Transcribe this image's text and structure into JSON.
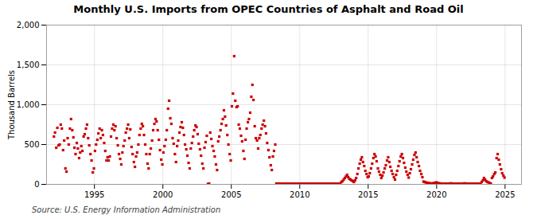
{
  "chart_data": {
    "type": "scatter",
    "title": "Monthly U.S. Imports from OPEC Countries of Asphalt and Road Oil",
    "ylabel": "Thousand Barrels",
    "source": "Source: U.S. Energy Information Administration",
    "xlim": [
      1991.5,
      2026.2
    ],
    "xticks": [
      1995,
      2000,
      2005,
      2010,
      2015,
      2020,
      2025
    ],
    "ylim": [
      0,
      2000
    ],
    "yticks": [
      0,
      500,
      {
        "value": 1000,
        "label": "1,000"
      },
      {
        "value": 1500,
        "label": "1,500"
      },
      {
        "value": 2000,
        "label": "2,000"
      }
    ],
    "grid": true,
    "color": "#cc0000",
    "marker": "square",
    "x": [
      1992.04,
      1992.12,
      1992.21,
      1992.29,
      1992.38,
      1992.46,
      1992.54,
      1992.62,
      1992.71,
      1992.79,
      1992.88,
      1992.96,
      1993.04,
      1993.12,
      1993.21,
      1993.29,
      1993.38,
      1993.46,
      1993.54,
      1993.62,
      1993.71,
      1993.79,
      1993.88,
      1993.96,
      1994.04,
      1994.12,
      1994.21,
      1994.29,
      1994.38,
      1994.46,
      1994.54,
      1994.62,
      1994.71,
      1994.79,
      1994.88,
      1994.96,
      1995.04,
      1995.12,
      1995.21,
      1995.29,
      1995.38,
      1995.46,
      1995.54,
      1995.62,
      1995.71,
      1995.79,
      1995.88,
      1995.96,
      1996.04,
      1996.12,
      1996.21,
      1996.29,
      1996.38,
      1996.46,
      1996.54,
      1996.62,
      1996.71,
      1996.79,
      1996.88,
      1996.96,
      1997.04,
      1997.12,
      1997.21,
      1997.29,
      1997.38,
      1997.46,
      1997.54,
      1997.62,
      1997.71,
      1997.79,
      1997.88,
      1997.96,
      1998.04,
      1998.12,
      1998.21,
      1998.29,
      1998.38,
      1998.46,
      1998.54,
      1998.62,
      1998.71,
      1998.79,
      1998.88,
      1998.96,
      1999.04,
      1999.12,
      1999.21,
      1999.29,
      1999.38,
      1999.46,
      1999.54,
      1999.62,
      1999.71,
      1999.79,
      1999.88,
      1999.96,
      2000.04,
      2000.12,
      2000.21,
      2000.29,
      2000.38,
      2000.46,
      2000.54,
      2000.62,
      2000.71,
      2000.79,
      2000.88,
      2000.96,
      2001.04,
      2001.12,
      2001.21,
      2001.29,
      2001.38,
      2001.46,
      2001.54,
      2001.62,
      2001.71,
      2001.79,
      2001.88,
      2001.96,
      2002.04,
      2002.12,
      2002.21,
      2002.29,
      2002.38,
      2002.46,
      2002.54,
      2002.62,
      2002.71,
      2002.79,
      2002.88,
      2002.96,
      2003.04,
      2003.12,
      2003.21,
      2003.29,
      2003.38,
      2003.46,
      2003.54,
      2003.62,
      2003.71,
      2003.79,
      2003.88,
      2003.96,
      2004.04,
      2004.12,
      2004.21,
      2004.29,
      2004.38,
      2004.46,
      2004.54,
      2004.62,
      2004.71,
      2004.79,
      2004.88,
      2004.96,
      2005.04,
      2005.12,
      2005.21,
      2005.29,
      2005.38,
      2005.46,
      2005.54,
      2005.62,
      2005.71,
      2005.79,
      2005.88,
      2005.96,
      2006.04,
      2006.12,
      2006.21,
      2006.29,
      2006.38,
      2006.46,
      2006.54,
      2006.62,
      2006.71,
      2006.79,
      2006.88,
      2006.96,
      2007.04,
      2007.12,
      2007.21,
      2007.29,
      2007.38,
      2007.46,
      2007.54,
      2007.62,
      2007.71,
      2007.79,
      2007.88,
      2007.96,
      2008.04,
      2008.12,
      2008.21,
      2008.29,
      2008.38,
      2008.46,
      2008.54,
      2008.62,
      2008.71,
      2008.79,
      2008.88,
      2008.96,
      2009.04,
      2009.12,
      2009.21,
      2009.29,
      2009.38,
      2009.46,
      2009.54,
      2009.62,
      2009.71,
      2009.79,
      2009.88,
      2009.96,
      2010.04,
      2010.12,
      2010.21,
      2010.29,
      2010.38,
      2010.46,
      2010.54,
      2010.62,
      2010.71,
      2010.79,
      2010.88,
      2010.96,
      2011.04,
      2011.12,
      2011.21,
      2011.29,
      2011.38,
      2011.46,
      2011.54,
      2011.62,
      2011.71,
      2011.79,
      2011.88,
      2011.96,
      2012.04,
      2012.12,
      2012.21,
      2012.29,
      2012.38,
      2012.46,
      2012.54,
      2012.62,
      2012.71,
      2012.79,
      2012.88,
      2012.96,
      2013.04,
      2013.12,
      2013.21,
      2013.29,
      2013.38,
      2013.46,
      2013.54,
      2013.62,
      2013.71,
      2013.79,
      2013.88,
      2013.96,
      2014.04,
      2014.12,
      2014.21,
      2014.29,
      2014.38,
      2014.46,
      2014.54,
      2014.62,
      2014.71,
      2014.79,
      2014.88,
      2014.96,
      2015.04,
      2015.12,
      2015.21,
      2015.29,
      2015.38,
      2015.46,
      2015.54,
      2015.62,
      2015.71,
      2015.79,
      2015.88,
      2015.96,
      2016.04,
      2016.12,
      2016.21,
      2016.29,
      2016.38,
      2016.46,
      2016.54,
      2016.62,
      2016.71,
      2016.79,
      2016.88,
      2016.96,
      2017.04,
      2017.12,
      2017.21,
      2017.29,
      2017.38,
      2017.46,
      2017.54,
      2017.62,
      2017.71,
      2017.79,
      2017.88,
      2017.96,
      2018.04,
      2018.12,
      2018.21,
      2018.29,
      2018.38,
      2018.46,
      2018.54,
      2018.62,
      2018.71,
      2018.79,
      2018.88,
      2018.96,
      2019.04,
      2019.12,
      2019.21,
      2019.29,
      2019.38,
      2019.46,
      2019.54,
      2019.62,
      2019.71,
      2019.79,
      2019.88,
      2019.96,
      2020.04,
      2020.12,
      2020.21,
      2020.29,
      2020.38,
      2020.46,
      2020.54,
      2020.62,
      2020.71,
      2020.79,
      2020.88,
      2020.96,
      2021.04,
      2021.12,
      2021.21,
      2021.29,
      2021.38,
      2021.46,
      2021.54,
      2021.62,
      2021.71,
      2021.79,
      2021.88,
      2021.96,
      2022.04,
      2022.12,
      2022.21,
      2022.29,
      2022.38,
      2022.46,
      2022.54,
      2022.62,
      2022.71,
      2022.79,
      2022.88,
      2022.96,
      2023.04,
      2023.12,
      2023.21,
      2023.29,
      2023.38,
      2023.46,
      2023.54,
      2023.62,
      2023.71,
      2023.79,
      2023.88,
      2023.96,
      2024.04,
      2024.12,
      2024.21,
      2024.29,
      2024.38,
      2024.46,
      2024.54,
      2024.62,
      2024.71,
      2024.79,
      2024.88,
      2024.96
    ],
    "values": [
      600,
      650,
      460,
      710,
      490,
      500,
      750,
      700,
      430,
      550,
      200,
      160,
      580,
      500,
      700,
      820,
      680,
      590,
      460,
      380,
      520,
      450,
      330,
      400,
      480,
      420,
      600,
      630,
      700,
      750,
      580,
      490,
      380,
      300,
      150,
      200,
      420,
      500,
      560,
      640,
      700,
      580,
      680,
      620,
      520,
      420,
      300,
      340,
      300,
      350,
      600,
      700,
      750,
      680,
      730,
      580,
      490,
      380,
      320,
      250,
      400,
      480,
      550,
      650,
      700,
      750,
      580,
      690,
      470,
      380,
      280,
      220,
      350,
      400,
      500,
      620,
      700,
      760,
      730,
      620,
      500,
      380,
      260,
      200,
      380,
      450,
      550,
      680,
      760,
      820,
      790,
      680,
      560,
      430,
      310,
      250,
      400,
      480,
      560,
      680,
      950,
      1050,
      830,
      760,
      580,
      510,
      380,
      280,
      480,
      550,
      650,
      720,
      780,
      710,
      620,
      500,
      440,
      360,
      270,
      200,
      450,
      520,
      600,
      680,
      740,
      720,
      630,
      510,
      440,
      360,
      260,
      200,
      460,
      530,
      610,
      5,
      10,
      650,
      570,
      480,
      420,
      350,
      250,
      180,
      540,
      600,
      680,
      760,
      820,
      930,
      850,
      740,
      620,
      500,
      380,
      300,
      980,
      1140,
      1610,
      1050,
      970,
      980,
      750,
      700,
      610,
      540,
      420,
      320,
      560,
      700,
      780,
      820,
      900,
      1100,
      1250,
      1060,
      730,
      580,
      550,
      450,
      580,
      620,
      700,
      750,
      800,
      730,
      640,
      520,
      430,
      340,
      240,
      180,
      350,
      420,
      500,
      10,
      10,
      10,
      8,
      8,
      8,
      8,
      8,
      8,
      8,
      8,
      8,
      8,
      8,
      8,
      8,
      8,
      8,
      8,
      8,
      8,
      8,
      8,
      8,
      8,
      8,
      8,
      8,
      8,
      8,
      8,
      8,
      8,
      8,
      8,
      8,
      8,
      8,
      8,
      8,
      8,
      8,
      8,
      8,
      8,
      8,
      8,
      8,
      8,
      8,
      8,
      8,
      8,
      8,
      8,
      8,
      8,
      30,
      40,
      60,
      80,
      100,
      120,
      90,
      70,
      60,
      50,
      40,
      30,
      50,
      80,
      130,
      200,
      260,
      310,
      340,
      280,
      230,
      170,
      130,
      90,
      100,
      140,
      200,
      260,
      330,
      380,
      350,
      290,
      200,
      160,
      120,
      80,
      110,
      150,
      200,
      240,
      300,
      340,
      280,
      220,
      170,
      130,
      90,
      60,
      120,
      170,
      230,
      290,
      350,
      380,
      330,
      270,
      210,
      160,
      120,
      85,
      140,
      190,
      250,
      310,
      370,
      400,
      340,
      280,
      230,
      170,
      130,
      90,
      35,
      30,
      25,
      20,
      18,
      15,
      12,
      10,
      12,
      15,
      18,
      25,
      20,
      15,
      12,
      10,
      8,
      8,
      8,
      8,
      8,
      8,
      8,
      10,
      12,
      10,
      8,
      8,
      8,
      8,
      8,
      8,
      8,
      8,
      8,
      10,
      12,
      10,
      8,
      8,
      8,
      8,
      8,
      8,
      8,
      8,
      8,
      8,
      8,
      8,
      8,
      30,
      50,
      80,
      60,
      40,
      30,
      25,
      15,
      10,
      80,
      100,
      130,
      150,
      330,
      380,
      310,
      250,
      190,
      140,
      110,
      85
    ]
  }
}
